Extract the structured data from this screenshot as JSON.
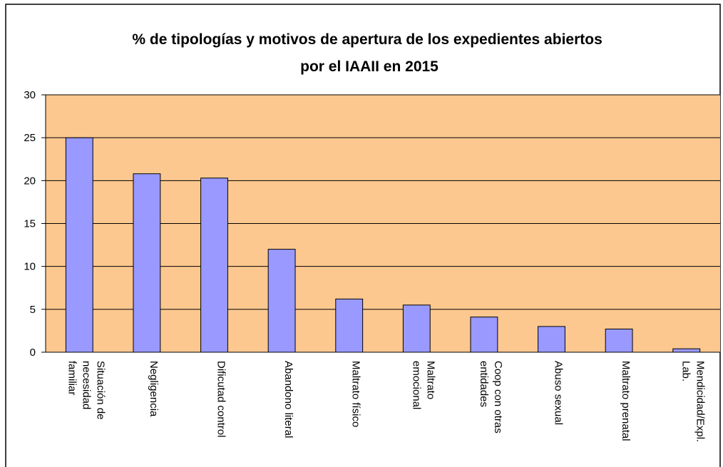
{
  "chart_data": {
    "type": "bar",
    "title": "% de tipologías y motivos de apertura de los expedientes abiertos por el IAAII en 2015",
    "categories": [
      "Situación de necesidad familiar",
      "Negligencia",
      "Dificutad control",
      "Abandono literal",
      "Maltrato físico",
      "Maltrato emocional",
      "Coop con otras entidades",
      "Abuso sexual",
      "Maltrato prenatal",
      "Mendicidad/Expl. Lab."
    ],
    "values": [
      25,
      20.8,
      20.3,
      12,
      6.2,
      5.5,
      4.1,
      3,
      2.7,
      0.4
    ],
    "color": "#9999ff",
    "ylim": [
      0,
      30
    ],
    "yticks": [
      0,
      5,
      10,
      15,
      20,
      25,
      30
    ],
    "grid": true
  }
}
